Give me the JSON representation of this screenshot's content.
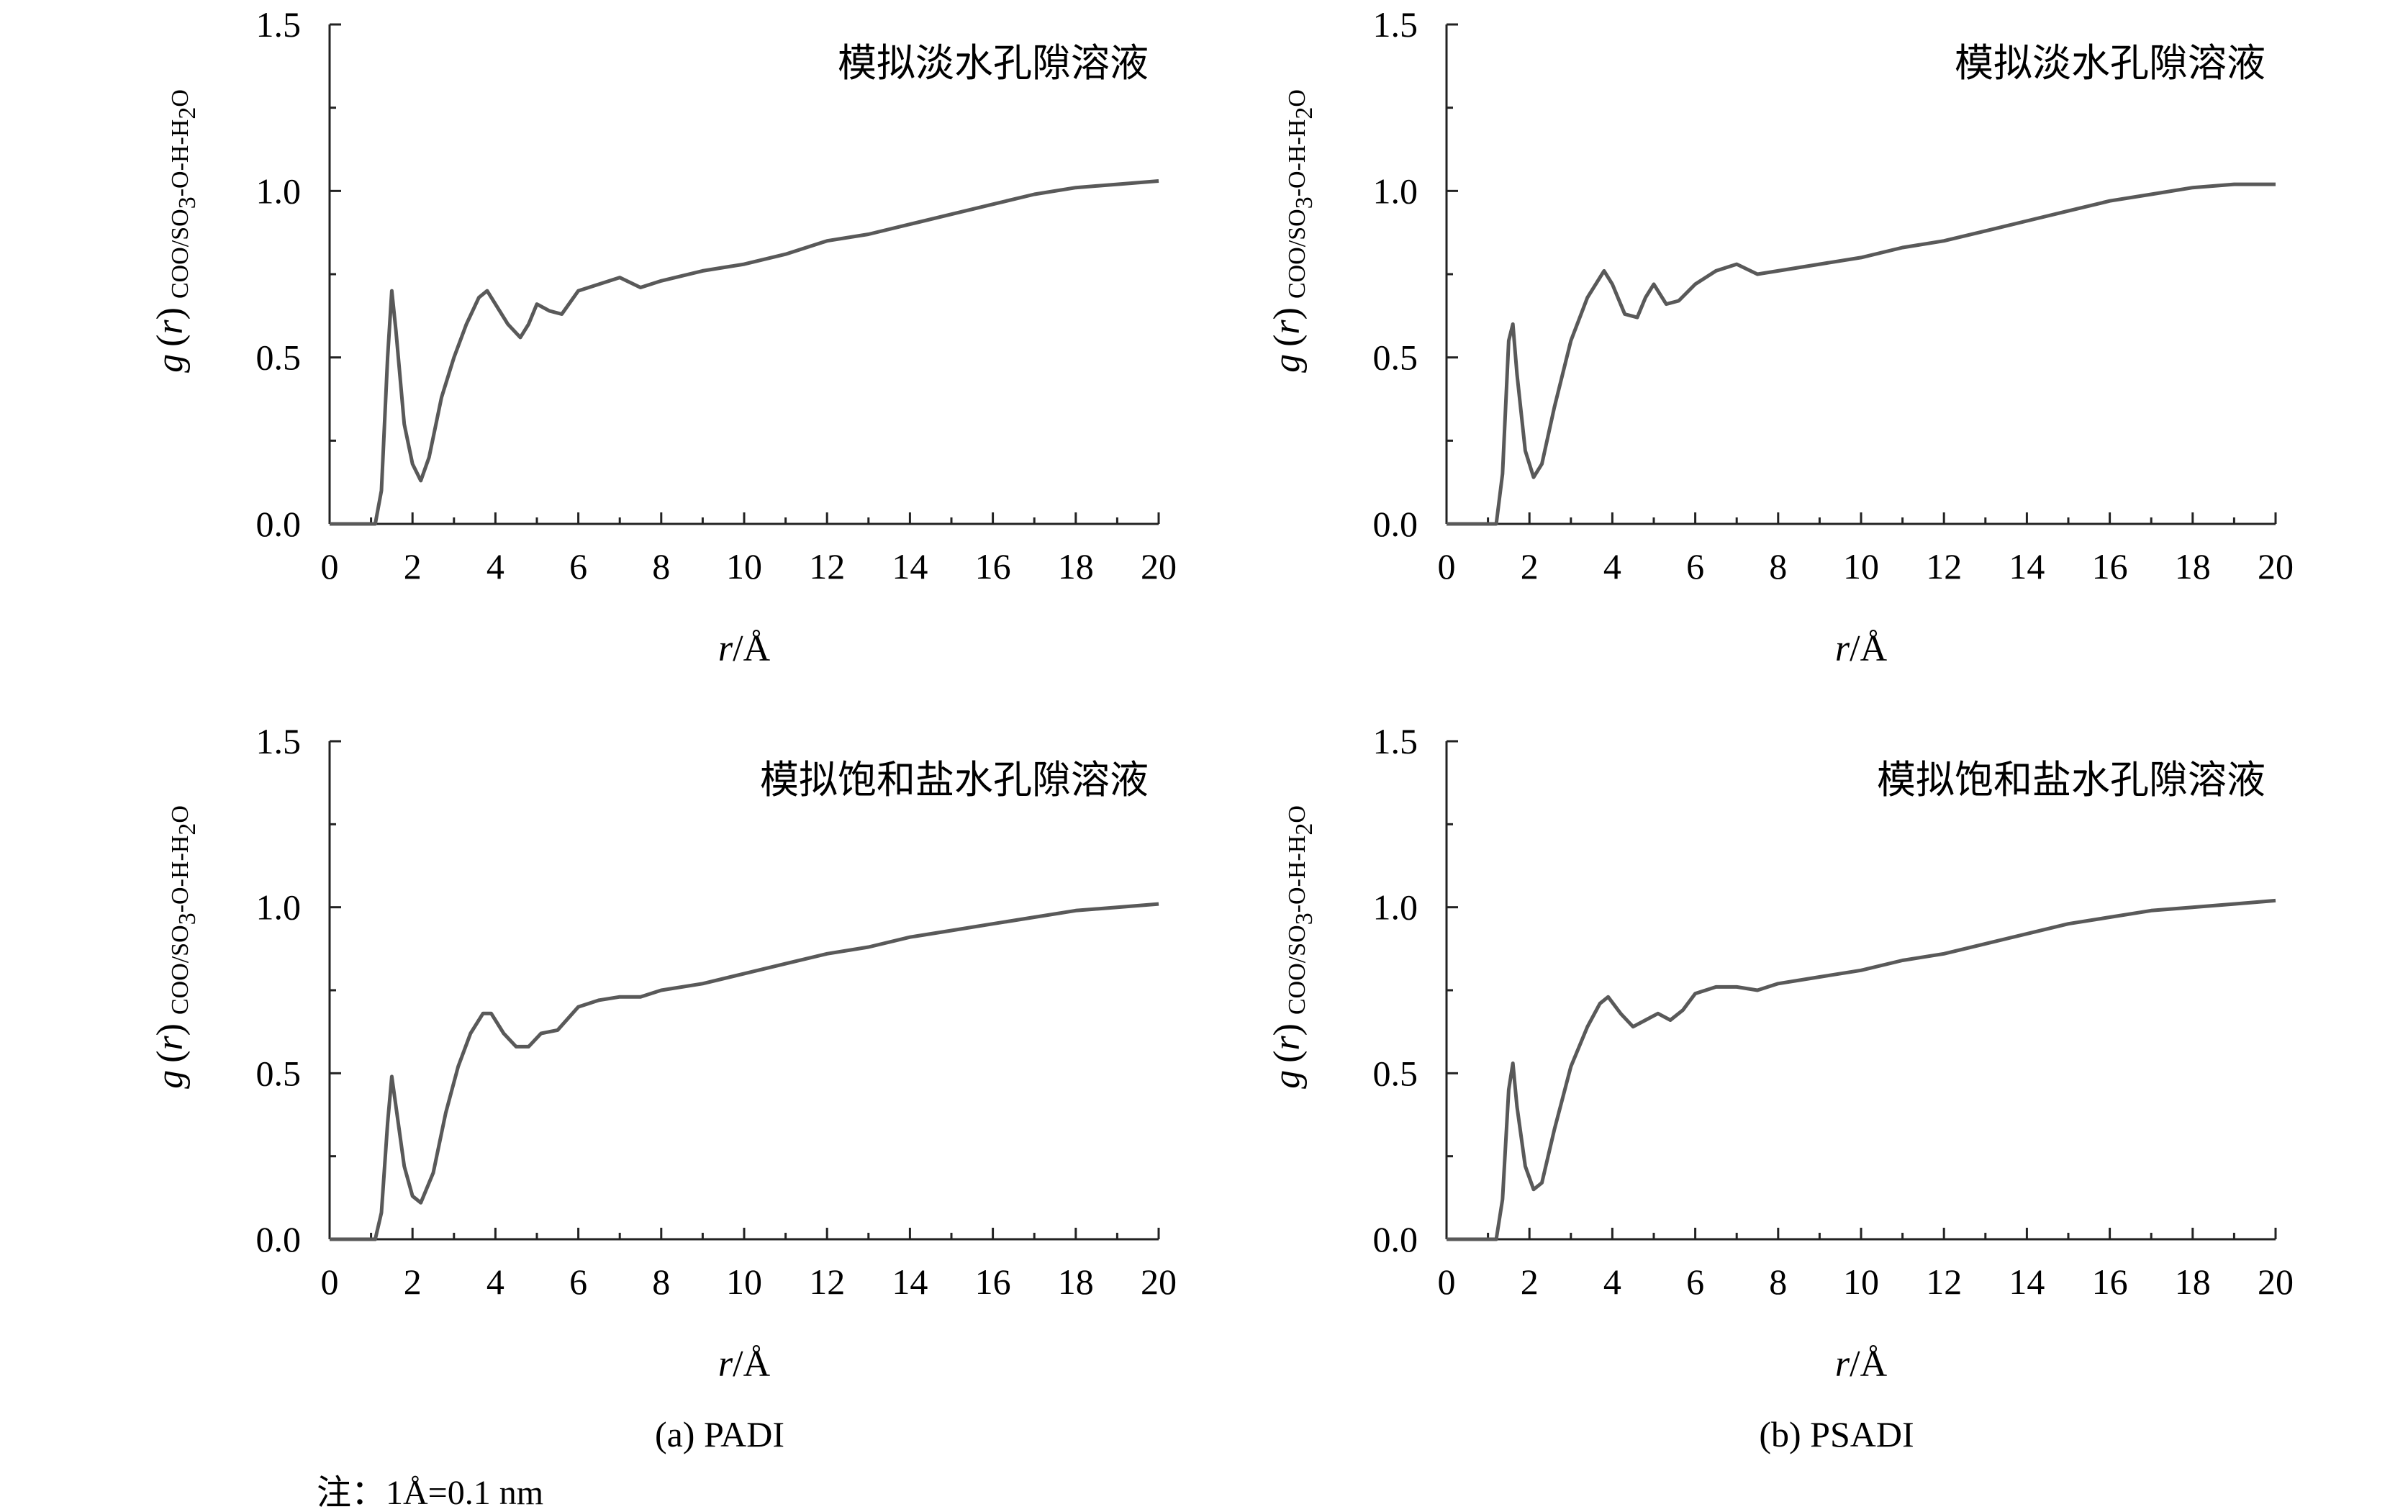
{
  "captions": {
    "a": "(a) PADI",
    "b": "(b) PSADI"
  },
  "note": "注：1Å=0.1 nm",
  "ylabel": {
    "g": "g",
    "paren_open": "(",
    "r": "r",
    "paren_close": ")",
    "sub_prefix": "COO/SO",
    "sub_3": "3",
    "sub_mid": "-O-H-H",
    "sub_2": "2",
    "sub_o": "O"
  },
  "xlabel": {
    "r": "r",
    "unit": "/Å"
  },
  "chart_data": [
    {
      "type": "line",
      "panel": "a-top",
      "title": "模拟淡水孔隙溶液",
      "xlim": [
        0,
        20
      ],
      "ylim": [
        0,
        1.5
      ],
      "xticks": [
        "0",
        "2",
        "4",
        "6",
        "8",
        "10",
        "12",
        "14",
        "16",
        "18",
        "20"
      ],
      "yticks": [
        "0.0",
        "0.5",
        "1.0",
        "1.5"
      ],
      "x": [
        0,
        1.1,
        1.25,
        1.4,
        1.5,
        1.6,
        1.8,
        2.0,
        2.2,
        2.4,
        2.7,
        3.0,
        3.3,
        3.6,
        3.8,
        4.0,
        4.3,
        4.6,
        4.8,
        5.0,
        5.3,
        5.6,
        6.0,
        6.5,
        7.0,
        7.5,
        8.0,
        9.0,
        10.0,
        11.0,
        12.0,
        13.0,
        14.0,
        15.0,
        16.0,
        17.0,
        18.0,
        19.0,
        20.0
      ],
      "y": [
        0,
        0,
        0.1,
        0.5,
        0.7,
        0.58,
        0.3,
        0.18,
        0.13,
        0.2,
        0.38,
        0.5,
        0.6,
        0.68,
        0.7,
        0.66,
        0.6,
        0.56,
        0.6,
        0.66,
        0.64,
        0.63,
        0.7,
        0.72,
        0.74,
        0.71,
        0.73,
        0.76,
        0.78,
        0.81,
        0.85,
        0.87,
        0.9,
        0.93,
        0.96,
        0.99,
        1.01,
        1.02,
        1.03
      ]
    },
    {
      "type": "line",
      "panel": "b-top",
      "title": "模拟淡水孔隙溶液",
      "xlim": [
        0,
        20
      ],
      "ylim": [
        0,
        1.5
      ],
      "xticks": [
        "0",
        "2",
        "4",
        "6",
        "8",
        "10",
        "12",
        "14",
        "16",
        "18",
        "20"
      ],
      "yticks": [
        "0.0",
        "0.5",
        "1.0",
        "1.5"
      ],
      "x": [
        0,
        1.2,
        1.35,
        1.5,
        1.6,
        1.7,
        1.9,
        2.1,
        2.3,
        2.6,
        3.0,
        3.4,
        3.8,
        4.0,
        4.3,
        4.6,
        4.8,
        5.0,
        5.3,
        5.6,
        6.0,
        6.5,
        7.0,
        7.5,
        8.0,
        9.0,
        10.0,
        11.0,
        12.0,
        13.0,
        14.0,
        15.0,
        16.0,
        17.0,
        18.0,
        19.0,
        20.0
      ],
      "y": [
        0,
        0,
        0.15,
        0.55,
        0.6,
        0.45,
        0.22,
        0.14,
        0.18,
        0.35,
        0.55,
        0.68,
        0.76,
        0.72,
        0.63,
        0.62,
        0.68,
        0.72,
        0.66,
        0.67,
        0.72,
        0.76,
        0.78,
        0.75,
        0.76,
        0.78,
        0.8,
        0.83,
        0.85,
        0.88,
        0.91,
        0.94,
        0.97,
        0.99,
        1.01,
        1.02,
        1.02
      ]
    },
    {
      "type": "line",
      "panel": "a-bottom",
      "title": "模拟饱和盐水孔隙溶液",
      "xlim": [
        0,
        20
      ],
      "ylim": [
        0,
        1.5
      ],
      "xticks": [
        "0",
        "2",
        "4",
        "6",
        "8",
        "10",
        "12",
        "14",
        "16",
        "18",
        "20"
      ],
      "yticks": [
        "0.0",
        "0.5",
        "1.0",
        "1.5"
      ],
      "x": [
        0,
        1.1,
        1.25,
        1.4,
        1.5,
        1.6,
        1.8,
        2.0,
        2.2,
        2.5,
        2.8,
        3.1,
        3.4,
        3.7,
        3.9,
        4.2,
        4.5,
        4.8,
        5.1,
        5.5,
        6.0,
        6.5,
        7.0,
        7.5,
        8.0,
        9.0,
        10.0,
        11.0,
        12.0,
        13.0,
        14.0,
        15.0,
        16.0,
        17.0,
        18.0,
        19.0,
        20.0
      ],
      "y": [
        0,
        0,
        0.08,
        0.35,
        0.49,
        0.4,
        0.22,
        0.13,
        0.11,
        0.2,
        0.38,
        0.52,
        0.62,
        0.68,
        0.68,
        0.62,
        0.58,
        0.58,
        0.62,
        0.63,
        0.7,
        0.72,
        0.73,
        0.73,
        0.75,
        0.77,
        0.8,
        0.83,
        0.86,
        0.88,
        0.91,
        0.93,
        0.95,
        0.97,
        0.99,
        1.0,
        1.01
      ]
    },
    {
      "type": "line",
      "panel": "b-bottom",
      "title": "模拟饱和盐水孔隙溶液",
      "xlim": [
        0,
        20
      ],
      "ylim": [
        0,
        1.5
      ],
      "xticks": [
        "0",
        "2",
        "4",
        "6",
        "8",
        "10",
        "12",
        "14",
        "16",
        "18",
        "20"
      ],
      "yticks": [
        "0.0",
        "0.5",
        "1.0",
        "1.5"
      ],
      "x": [
        0,
        1.2,
        1.35,
        1.5,
        1.6,
        1.7,
        1.9,
        2.1,
        2.3,
        2.6,
        3.0,
        3.4,
        3.7,
        3.9,
        4.2,
        4.5,
        4.8,
        5.1,
        5.4,
        5.7,
        6.0,
        6.5,
        7.0,
        7.5,
        8.0,
        9.0,
        10.0,
        11.0,
        12.0,
        13.0,
        14.0,
        15.0,
        16.0,
        17.0,
        18.0,
        19.0,
        20.0
      ],
      "y": [
        0,
        0,
        0.12,
        0.45,
        0.53,
        0.4,
        0.22,
        0.15,
        0.17,
        0.33,
        0.52,
        0.64,
        0.71,
        0.73,
        0.68,
        0.64,
        0.66,
        0.68,
        0.66,
        0.69,
        0.74,
        0.76,
        0.76,
        0.75,
        0.77,
        0.79,
        0.81,
        0.84,
        0.86,
        0.89,
        0.92,
        0.95,
        0.97,
        0.99,
        1.0,
        1.01,
        1.02
      ]
    }
  ]
}
